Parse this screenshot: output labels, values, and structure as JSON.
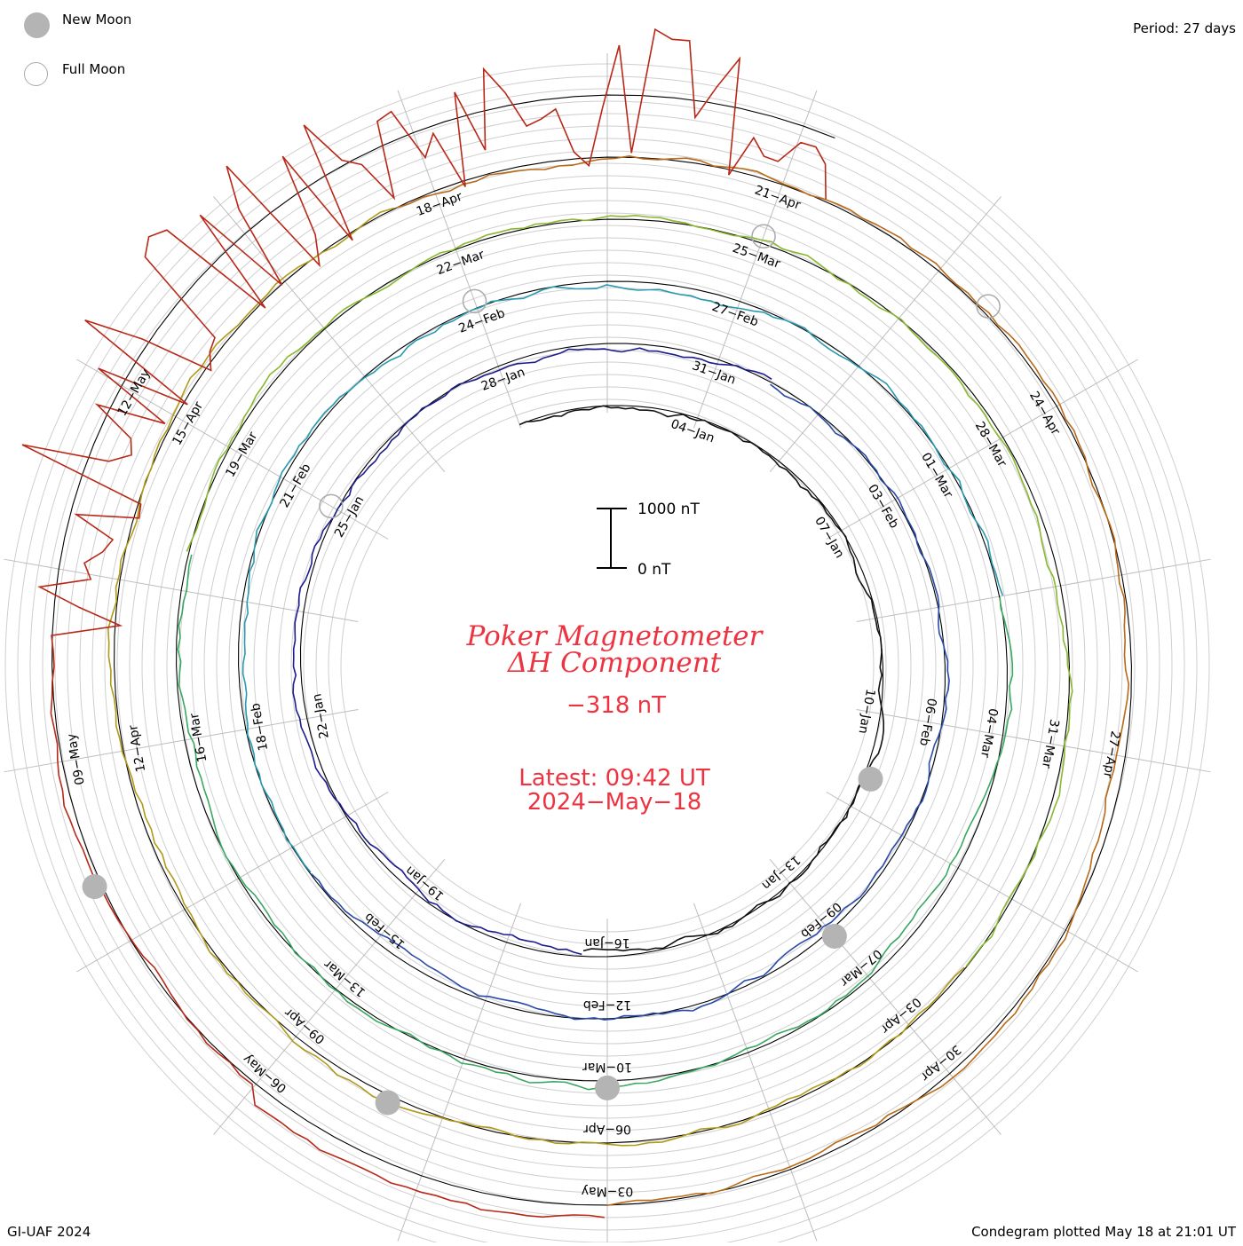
{
  "legend": {
    "new_moon_label": "New Moon",
    "full_moon_label": "Full Moon",
    "colors": {
      "new_moon": "#b4b4b4",
      "full_moon_ring": "#aaaaaa"
    }
  },
  "header": {
    "period": "Period: 27 days"
  },
  "footer": {
    "credit": "GI-UAF 2024",
    "plotted": "Condegram plotted May 18 at 21:01 UT"
  },
  "center": {
    "title_line1": "Poker Magnetometer",
    "title_line2": "ΔH Component",
    "current_value": "−318 nT",
    "latest_time": "Latest: 09:42 UT",
    "latest_date": "2024−May−18"
  },
  "scale_bar": {
    "top_label": "1000 nT",
    "bottom_label": "0 nT",
    "span_nT": 1000
  },
  "chart_data": {
    "type": "line",
    "subtype": "condegram spiral (27-day rotations)",
    "period_days": 27,
    "series_colors": [
      "#111111",
      "#1c1c8c",
      "#2a4aa8",
      "#2a9ab0",
      "#3aa860",
      "#8ab830",
      "#b09a18",
      "#b86a18",
      "#b82818"
    ],
    "rotations": [
      {
        "labels": [
          "04−Jan",
          "07−Jan",
          "10−Jan",
          "13−Jan",
          "16−Jan",
          "19−Jan",
          "22−Jan",
          "25−Jan",
          "28−Jan"
        ]
      },
      {
        "labels": [
          "31−Jan",
          "03−Feb",
          "06−Feb",
          "09−Feb",
          "12−Feb",
          "15−Feb",
          "18−Feb",
          "21−Feb",
          "24−Feb"
        ]
      },
      {
        "labels": [
          "27−Feb",
          "01−Mar",
          "04−Mar",
          "07−Mar",
          "10−Mar",
          "13−Mar",
          "16−Mar",
          "19−Mar",
          "22−Mar"
        ]
      },
      {
        "labels": [
          "25−Mar",
          "28−Mar",
          "31−Mar",
          "03−Apr",
          "06−Apr",
          "09−Apr",
          "12−Apr",
          "15−Apr",
          "18−Apr"
        ]
      },
      {
        "labels": [
          "21−Apr",
          "24−Apr",
          "27−Apr",
          "30−Apr",
          "03−May",
          "06−May",
          "09−May",
          "12−May"
        ]
      }
    ],
    "new_moons": [
      "11−Jan",
      "09−Feb",
      "10−Mar",
      "08−Apr",
      "08−May"
    ],
    "full_moons": [
      "25−Jan",
      "24−Feb",
      "25−Mar",
      "23−Apr"
    ],
    "unit": "nT",
    "grid": true
  }
}
